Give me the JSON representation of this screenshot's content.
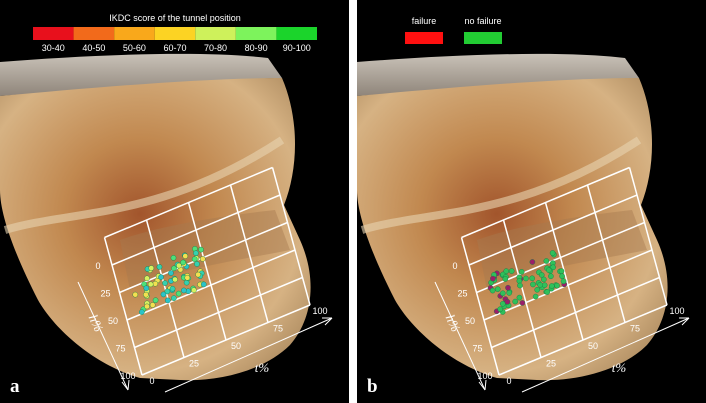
{
  "panels": [
    {
      "label": "a",
      "legend": {
        "title": "IKDC score of the tunnel position",
        "items": [
          {
            "label": "30-40",
            "color": "#e8101c"
          },
          {
            "label": "40-50",
            "color": "#f26a1b"
          },
          {
            "label": "50-60",
            "color": "#f9a81b"
          },
          {
            "label": "60-70",
            "color": "#fcd323"
          },
          {
            "label": "70-80",
            "color": "#cef15b"
          },
          {
            "label": "80-90",
            "color": "#7df35c"
          },
          {
            "label": "90-100",
            "color": "#1bd42b"
          }
        ]
      },
      "h_axis": {
        "label": "h%",
        "ticks": [
          "0",
          "25",
          "50",
          "75",
          "100"
        ]
      },
      "t_axis": {
        "label": "t%",
        "ticks": [
          "0",
          "25",
          "50",
          "75",
          "100"
        ]
      }
    },
    {
      "label": "b",
      "legend": {
        "items": [
          {
            "label": "failure",
            "color": "#ff1010"
          },
          {
            "label": "no failure",
            "color": "#22cc33"
          }
        ]
      },
      "h_axis": {
        "label": "h%",
        "ticks": [
          "0",
          "25",
          "50",
          "75",
          "100"
        ]
      },
      "t_axis": {
        "label": "t%",
        "ticks": [
          "0",
          "25",
          "50",
          "75",
          "100"
        ]
      }
    }
  ]
}
